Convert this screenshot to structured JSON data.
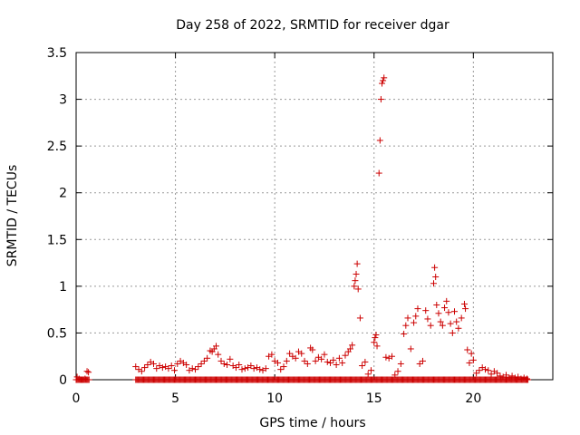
{
  "chart_data": {
    "type": "scatter",
    "title": "Day 258 of 2022, SRMTID for receiver dgar",
    "xlabel": "GPS time / hours",
    "ylabel": "SRMTID / TECUs",
    "xlim": [
      0,
      24
    ],
    "ylim": [
      0,
      3.5
    ],
    "xticks": [
      0,
      5,
      10,
      15,
      20
    ],
    "xtick_labels": [
      "0",
      "5",
      "10",
      "15",
      "20"
    ],
    "yticks": [
      0,
      0.5,
      1,
      1.5,
      2,
      2.5,
      3,
      3.5
    ],
    "ytick_labels": [
      "0",
      "0.5",
      "1",
      "1.5",
      "2",
      "2.5",
      "3",
      "3.5"
    ],
    "grid": true,
    "marker": "+",
    "color": "#cc0000",
    "series": [
      {
        "name": "SRMTID",
        "points": [
          [
            0.05,
            0.03
          ],
          [
            0.15,
            0.01
          ],
          [
            0.25,
            0.0
          ],
          [
            0.35,
            0.0
          ],
          [
            0.45,
            0.01
          ],
          [
            0.55,
            0.09
          ],
          [
            0.62,
            0.08
          ],
          [
            3.0,
            0.14
          ],
          [
            3.15,
            0.11
          ],
          [
            3.3,
            0.09
          ],
          [
            3.45,
            0.13
          ],
          [
            3.6,
            0.16
          ],
          [
            3.75,
            0.19
          ],
          [
            3.9,
            0.17
          ],
          [
            4.05,
            0.12
          ],
          [
            4.2,
            0.15
          ],
          [
            4.35,
            0.13
          ],
          [
            4.5,
            0.14
          ],
          [
            4.65,
            0.12
          ],
          [
            4.8,
            0.15
          ],
          [
            4.95,
            0.1
          ],
          [
            5.1,
            0.17
          ],
          [
            5.25,
            0.2
          ],
          [
            5.4,
            0.18
          ],
          [
            5.55,
            0.16
          ],
          [
            5.7,
            0.1
          ],
          [
            5.85,
            0.12
          ],
          [
            6.0,
            0.11
          ],
          [
            6.15,
            0.14
          ],
          [
            6.3,
            0.17
          ],
          [
            6.45,
            0.2
          ],
          [
            6.6,
            0.23
          ],
          [
            6.75,
            0.31
          ],
          [
            6.85,
            0.3
          ],
          [
            6.95,
            0.33
          ],
          [
            7.05,
            0.36
          ],
          [
            7.15,
            0.27
          ],
          [
            7.3,
            0.2
          ],
          [
            7.45,
            0.17
          ],
          [
            7.6,
            0.16
          ],
          [
            7.75,
            0.22
          ],
          [
            7.9,
            0.15
          ],
          [
            8.05,
            0.13
          ],
          [
            8.2,
            0.16
          ],
          [
            8.35,
            0.11
          ],
          [
            8.5,
            0.12
          ],
          [
            8.65,
            0.13
          ],
          [
            8.8,
            0.15
          ],
          [
            8.95,
            0.12
          ],
          [
            9.1,
            0.13
          ],
          [
            9.25,
            0.11
          ],
          [
            9.4,
            0.1
          ],
          [
            9.55,
            0.12
          ],
          [
            9.7,
            0.25
          ],
          [
            9.85,
            0.27
          ],
          [
            10.0,
            0.2
          ],
          [
            10.15,
            0.18
          ],
          [
            10.3,
            0.11
          ],
          [
            10.45,
            0.14
          ],
          [
            10.6,
            0.2
          ],
          [
            10.75,
            0.28
          ],
          [
            10.9,
            0.25
          ],
          [
            11.05,
            0.23
          ],
          [
            11.2,
            0.3
          ],
          [
            11.35,
            0.28
          ],
          [
            11.5,
            0.2
          ],
          [
            11.65,
            0.17
          ],
          [
            11.8,
            0.34
          ],
          [
            11.9,
            0.32
          ],
          [
            12.05,
            0.2
          ],
          [
            12.2,
            0.24
          ],
          [
            12.35,
            0.22
          ],
          [
            12.5,
            0.27
          ],
          [
            12.65,
            0.19
          ],
          [
            12.8,
            0.18
          ],
          [
            12.95,
            0.21
          ],
          [
            13.1,
            0.16
          ],
          [
            13.25,
            0.23
          ],
          [
            13.4,
            0.18
          ],
          [
            13.55,
            0.26
          ],
          [
            13.7,
            0.3
          ],
          [
            13.8,
            0.33
          ],
          [
            13.9,
            0.37
          ],
          [
            14.0,
            1.0
          ],
          [
            14.05,
            1.06
          ],
          [
            14.1,
            1.13
          ],
          [
            14.15,
            1.24
          ],
          [
            14.2,
            0.97
          ],
          [
            14.3,
            0.66
          ],
          [
            14.4,
            0.15
          ],
          [
            14.55,
            0.19
          ],
          [
            14.7,
            0.06
          ],
          [
            14.85,
            0.1
          ],
          [
            15.0,
            0.4
          ],
          [
            15.05,
            0.45
          ],
          [
            15.1,
            0.48
          ],
          [
            15.15,
            0.36
          ],
          [
            15.25,
            2.21
          ],
          [
            15.3,
            2.56
          ],
          [
            15.35,
            3.0
          ],
          [
            15.4,
            3.17
          ],
          [
            15.45,
            3.2
          ],
          [
            15.5,
            3.23
          ],
          [
            15.6,
            0.24
          ],
          [
            15.75,
            0.23
          ],
          [
            15.9,
            0.25
          ],
          [
            16.05,
            0.05
          ],
          [
            16.2,
            0.09
          ],
          [
            16.35,
            0.17
          ],
          [
            16.5,
            0.49
          ],
          [
            16.6,
            0.58
          ],
          [
            16.7,
            0.66
          ],
          [
            16.85,
            0.33
          ],
          [
            17.0,
            0.61
          ],
          [
            17.1,
            0.68
          ],
          [
            17.2,
            0.76
          ],
          [
            17.3,
            0.17
          ],
          [
            17.45,
            0.2
          ],
          [
            17.6,
            0.74
          ],
          [
            17.7,
            0.65
          ],
          [
            17.85,
            0.58
          ],
          [
            18.0,
            1.03
          ],
          [
            18.05,
            1.2
          ],
          [
            18.1,
            1.1
          ],
          [
            18.15,
            0.8
          ],
          [
            18.25,
            0.71
          ],
          [
            18.35,
            0.62
          ],
          [
            18.45,
            0.58
          ],
          [
            18.55,
            0.77
          ],
          [
            18.65,
            0.84
          ],
          [
            18.75,
            0.72
          ],
          [
            18.85,
            0.6
          ],
          [
            18.95,
            0.5
          ],
          [
            19.05,
            0.73
          ],
          [
            19.15,
            0.62
          ],
          [
            19.25,
            0.55
          ],
          [
            19.4,
            0.66
          ],
          [
            19.55,
            0.81
          ],
          [
            19.6,
            0.76
          ],
          [
            19.7,
            0.32
          ],
          [
            19.8,
            0.18
          ],
          [
            19.9,
            0.28
          ],
          [
            20.0,
            0.21
          ],
          [
            20.15,
            0.07
          ],
          [
            20.3,
            0.1
          ],
          [
            20.45,
            0.13
          ],
          [
            20.6,
            0.11
          ],
          [
            20.75,
            0.1
          ],
          [
            20.9,
            0.06
          ],
          [
            21.05,
            0.09
          ],
          [
            21.2,
            0.07
          ],
          [
            21.35,
            0.04
          ],
          [
            21.5,
            0.03
          ],
          [
            21.65,
            0.05
          ],
          [
            21.8,
            0.02
          ],
          [
            21.95,
            0.04
          ],
          [
            22.1,
            0.02
          ],
          [
            22.25,
            0.03
          ],
          [
            22.4,
            0.01
          ],
          [
            22.55,
            0.02
          ],
          [
            22.7,
            0.01
          ]
        ],
        "zero_baseline_points": {
          "y": 0,
          "x_ranges": [
            [
              0.0,
              0.65
            ],
            [
              3.0,
              22.75
            ]
          ],
          "step": 0.05
        }
      }
    ]
  }
}
